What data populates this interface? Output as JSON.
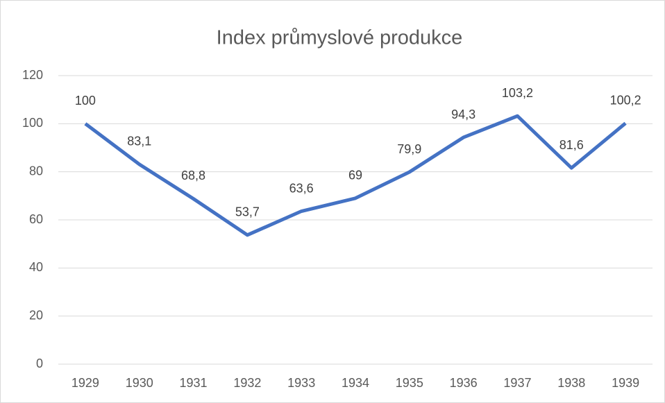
{
  "chart_data": {
    "type": "line",
    "title": "Index průmyslové produkce",
    "categories": [
      "1929",
      "1930",
      "1931",
      "1932",
      "1933",
      "1934",
      "1935",
      "1936",
      "1937",
      "1938",
      "1939"
    ],
    "series": [
      {
        "name": "Index",
        "color": "#4472c4",
        "values": [
          100,
          83.1,
          68.8,
          53.7,
          63.6,
          69,
          79.9,
          94.3,
          103.2,
          81.6,
          100.2
        ],
        "value_labels": [
          "100",
          "83,1",
          "68,8",
          "53,7",
          "63,6",
          "69",
          "79,9",
          "94,3",
          "103,2",
          "81,6",
          "100,2"
        ]
      }
    ],
    "ylim": [
      0,
      120
    ],
    "yticks": [
      0,
      20,
      40,
      60,
      80,
      100,
      120
    ],
    "grid": true
  }
}
